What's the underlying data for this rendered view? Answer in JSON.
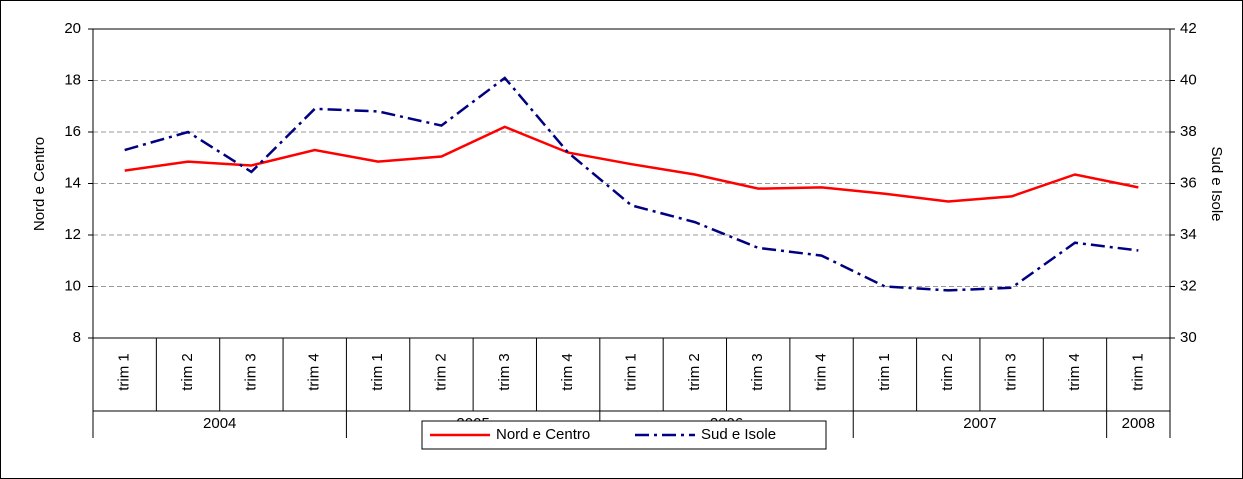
{
  "chart_data": {
    "type": "line",
    "categories": [
      "trim 1",
      "trim 2",
      "trim 3",
      "trim 4",
      "trim 1",
      "trim 2",
      "trim 3",
      "trim 4",
      "trim 1",
      "trim 2",
      "trim 3",
      "trim 4",
      "trim 1",
      "trim 2",
      "trim 3",
      "trim 4",
      "trim 1"
    ],
    "category_groups": [
      {
        "label": "2004",
        "count": 4
      },
      {
        "label": "2005",
        "count": 4
      },
      {
        "label": "2006",
        "count": 4
      },
      {
        "label": "2007",
        "count": 4
      },
      {
        "label": "2008",
        "count": 1
      }
    ],
    "y_label": "Nord e Centro",
    "y2_label": "Sud e Isole",
    "ylim": [
      8,
      20
    ],
    "yticks": [
      8,
      10,
      12,
      14,
      16,
      18,
      20
    ],
    "y2lim": [
      30,
      42
    ],
    "y2ticks": [
      30,
      32,
      34,
      36,
      38,
      40,
      42
    ],
    "grid": true,
    "legend": "bottom",
    "series": [
      {
        "name": "Nord e Centro",
        "color": "#ff0000",
        "values": [
          14.5,
          14.85,
          14.7,
          15.3,
          14.85,
          15.05,
          16.2,
          15.2,
          14.75,
          14.35,
          13.8,
          13.85,
          13.6,
          13.3,
          13.5,
          14.35,
          13.85
        ]
      },
      {
        "name": "Sud e Isole",
        "color": "#000080",
        "axis": "y2",
        "values": [
          37.3,
          38.0,
          36.45,
          38.9,
          38.8,
          38.25,
          40.1,
          37.2,
          35.15,
          34.5,
          33.5,
          33.2,
          32.0,
          31.85,
          31.95,
          33.7,
          33.4
        ]
      }
    ]
  }
}
